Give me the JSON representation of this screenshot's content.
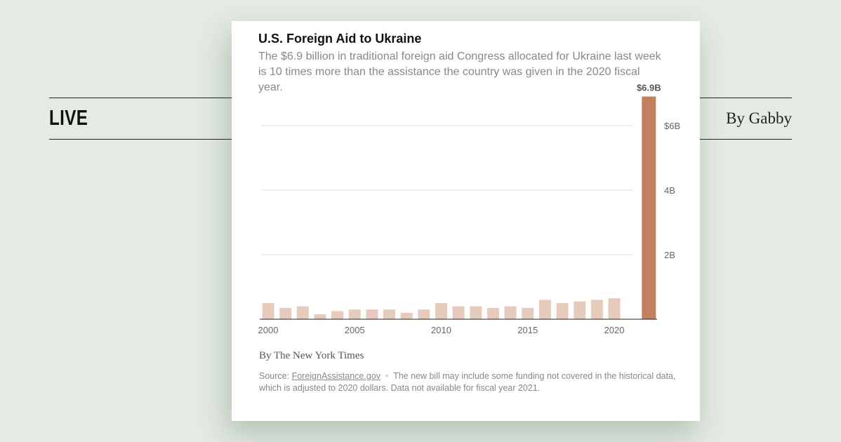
{
  "header": {
    "live_label": "LIVE",
    "byline": "By Gabby"
  },
  "colors": {
    "background": "#e3ebe2",
    "bar": "#e6cbbd",
    "highlight_bar": "#c47f5e",
    "grid": "#e2e2e2"
  },
  "chart_data": {
    "type": "bar",
    "title": "U.S. Foreign Aid to Ukraine",
    "subtitle": "The $6.9 billion in traditional foreign aid Congress allocated for Ukraine last week is 10 times more than the assistance the country was given in the 2020 fiscal year.",
    "x": [
      2000,
      2001,
      2002,
      2003,
      2004,
      2005,
      2006,
      2007,
      2008,
      2009,
      2010,
      2011,
      2012,
      2013,
      2014,
      2015,
      2016,
      2017,
      2018,
      2019,
      2020,
      2022
    ],
    "values": [
      0.5,
      0.35,
      0.4,
      0.15,
      0.25,
      0.3,
      0.3,
      0.3,
      0.2,
      0.3,
      0.5,
      0.4,
      0.4,
      0.35,
      0.4,
      0.35,
      0.6,
      0.5,
      0.55,
      0.6,
      0.65,
      6.9
    ],
    "unit": "billion USD",
    "highlight": {
      "x": 2022,
      "label": "$6.9B"
    },
    "x_ticks": [
      "2000",
      "2005",
      "2010",
      "2015",
      "2020"
    ],
    "y_ticks": [
      {
        "value": 2,
        "label": "2B"
      },
      {
        "value": 4,
        "label": "4B"
      },
      {
        "value": 6,
        "label": "$6B"
      }
    ],
    "ylim": [
      0,
      6.9
    ],
    "grid": true,
    "credit": "By The New York Times",
    "source_label": "Source: ",
    "source_link": "ForeignAssistance.gov",
    "note": "The new bill may include some funding not covered in the historical data, which is adjusted to 2020 dollars. Data not available for fiscal year 2021."
  }
}
